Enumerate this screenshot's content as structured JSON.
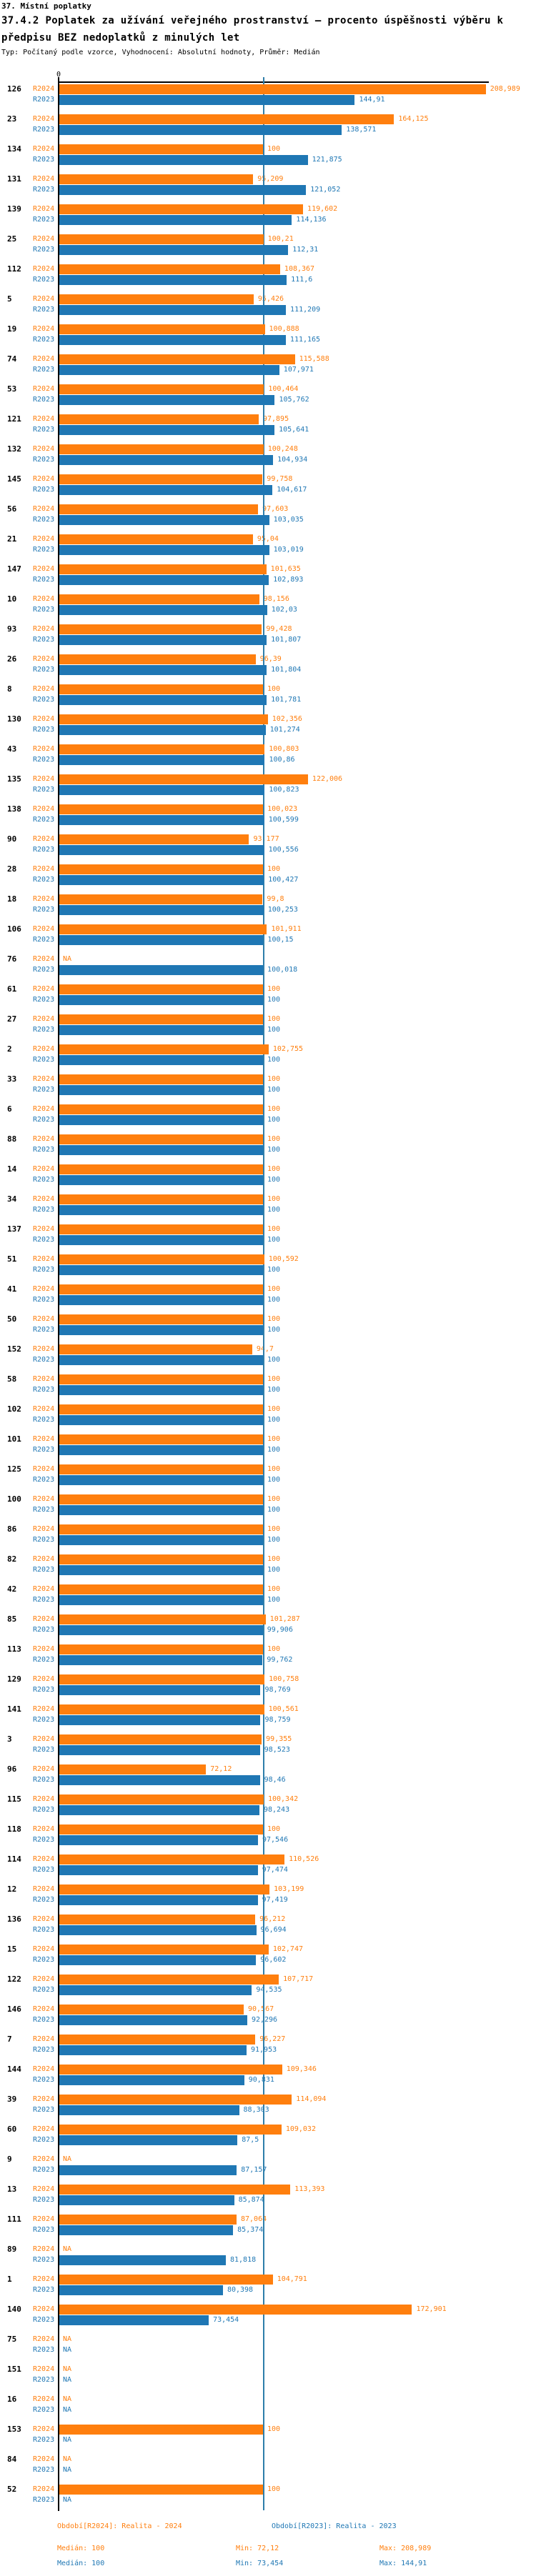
{
  "header": {
    "section_title": "37. Místní poplatky"
  },
  "chart_data": {
    "type": "bar",
    "orientation": "horizontal",
    "title_line1": "37.4.2 Poplatek za užívání veřejného prostranství – procento úspěšnosti výběru k",
    "title_line2": "předpisu BEZ nedoplatků z minulých let",
    "meta": "Typ: Počítaný podle vzorce, Vyhodnocení: Absolutní hodnoty, Průměr: Medián",
    "value_axis": {
      "zero_label": "0",
      "range": [
        0,
        210
      ],
      "median_line_value": 100
    },
    "na_label": "NA",
    "series": [
      {
        "name": "R2024",
        "color": "#ff7f0e"
      },
      {
        "name": "R2023",
        "color": "#1f77b4"
      }
    ],
    "groups": [
      [
        "126",
        "208,989",
        "144,91"
      ],
      [
        "23",
        "164,125",
        "138,571"
      ],
      [
        "134",
        "100",
        "121,875"
      ],
      [
        "131",
        "95,209",
        "121,052"
      ],
      [
        "139",
        "119,602",
        "114,136"
      ],
      [
        "25",
        "100,21",
        "112,31"
      ],
      [
        "112",
        "108,367",
        "111,6"
      ],
      [
        "5",
        "95,426",
        "111,209"
      ],
      [
        "19",
        "100,888",
        "111,165"
      ],
      [
        "74",
        "115,588",
        "107,971"
      ],
      [
        "53",
        "100,464",
        "105,762"
      ],
      [
        "121",
        "97,895",
        "105,641"
      ],
      [
        "132",
        "100,248",
        "104,934"
      ],
      [
        "145",
        "99,758",
        "104,617"
      ],
      [
        "56",
        "97,603",
        "103,035"
      ],
      [
        "21",
        "95,04",
        "103,019"
      ],
      [
        "147",
        "101,635",
        "102,893"
      ],
      [
        "10",
        "98,156",
        "102,03"
      ],
      [
        "93",
        "99,428",
        "101,807"
      ],
      [
        "26",
        "96,39",
        "101,804"
      ],
      [
        "8",
        "100",
        "101,781"
      ],
      [
        "130",
        "102,356",
        "101,274"
      ],
      [
        "43",
        "100,803",
        "100,86"
      ],
      [
        "135",
        "122,006",
        "100,823"
      ],
      [
        "138",
        "100,023",
        "100,599"
      ],
      [
        "90",
        "93,177",
        "100,556"
      ],
      [
        "28",
        "100",
        "100,427"
      ],
      [
        "18",
        "99,8",
        "100,253"
      ],
      [
        "106",
        "101,911",
        "100,15"
      ],
      [
        "76",
        "NA",
        "100,018"
      ],
      [
        "61",
        "100",
        "100"
      ],
      [
        "27",
        "100",
        "100"
      ],
      [
        "2",
        "102,755",
        "100"
      ],
      [
        "33",
        "100",
        "100"
      ],
      [
        "6",
        "100",
        "100"
      ],
      [
        "88",
        "100",
        "100"
      ],
      [
        "14",
        "100",
        "100"
      ],
      [
        "34",
        "100",
        "100"
      ],
      [
        "137",
        "100",
        "100"
      ],
      [
        "51",
        "100,592",
        "100"
      ],
      [
        "41",
        "100",
        "100"
      ],
      [
        "50",
        "100",
        "100"
      ],
      [
        "152",
        "94,7",
        "100"
      ],
      [
        "58",
        "100",
        "100"
      ],
      [
        "102",
        "100",
        "100"
      ],
      [
        "101",
        "100",
        "100"
      ],
      [
        "125",
        "100",
        "100"
      ],
      [
        "100",
        "100",
        "100"
      ],
      [
        "86",
        "100",
        "100"
      ],
      [
        "82",
        "100",
        "100"
      ],
      [
        "42",
        "100",
        "100"
      ],
      [
        "85",
        "101,287",
        "99,906"
      ],
      [
        "113",
        "100",
        "99,762"
      ],
      [
        "129",
        "100,758",
        "98,769"
      ],
      [
        "141",
        "100,561",
        "98,759"
      ],
      [
        "3",
        "99,355",
        "98,523"
      ],
      [
        "96",
        "72,12",
        "98,46"
      ],
      [
        "115",
        "100,342",
        "98,243"
      ],
      [
        "118",
        "100",
        "97,546"
      ],
      [
        "114",
        "110,526",
        "97,474"
      ],
      [
        "12",
        "103,199",
        "97,419"
      ],
      [
        "136",
        "96,212",
        "96,694"
      ],
      [
        "15",
        "102,747",
        "96,602"
      ],
      [
        "122",
        "107,717",
        "94,535"
      ],
      [
        "146",
        "90,567",
        "92,296"
      ],
      [
        "7",
        "96,227",
        "91,953"
      ],
      [
        "144",
        "109,346",
        "90,831"
      ],
      [
        "39",
        "114,094",
        "88,303"
      ],
      [
        "60",
        "109,032",
        "87,5"
      ],
      [
        "9",
        "NA",
        "87,157"
      ],
      [
        "13",
        "113,393",
        "85,874"
      ],
      [
        "111",
        "87,064",
        "85,374"
      ],
      [
        "89",
        "NA",
        "81,818"
      ],
      [
        "1",
        "104,791",
        "80,398"
      ],
      [
        "140",
        "172,901",
        "73,454"
      ],
      [
        "75",
        "NA",
        "NA"
      ],
      [
        "151",
        "NA",
        "NA"
      ],
      [
        "16",
        "NA",
        "NA"
      ],
      [
        "153",
        "100",
        "NA"
      ],
      [
        "84",
        "NA",
        "NA"
      ],
      [
        "52",
        "100",
        "NA"
      ]
    ]
  },
  "legend": {
    "period_r2024": "Období[R2024]: Realita - 2024",
    "period_r2023": "Období[R2023]: Realita - 2023",
    "r2024_stats": {
      "median": "Medián: 100",
      "min": "Min: 72,12",
      "max": "Max: 208,989"
    },
    "r2023_stats": {
      "median": "Medián: 100",
      "min": "Min: 73,454",
      "max": "Max: 144,91"
    }
  }
}
